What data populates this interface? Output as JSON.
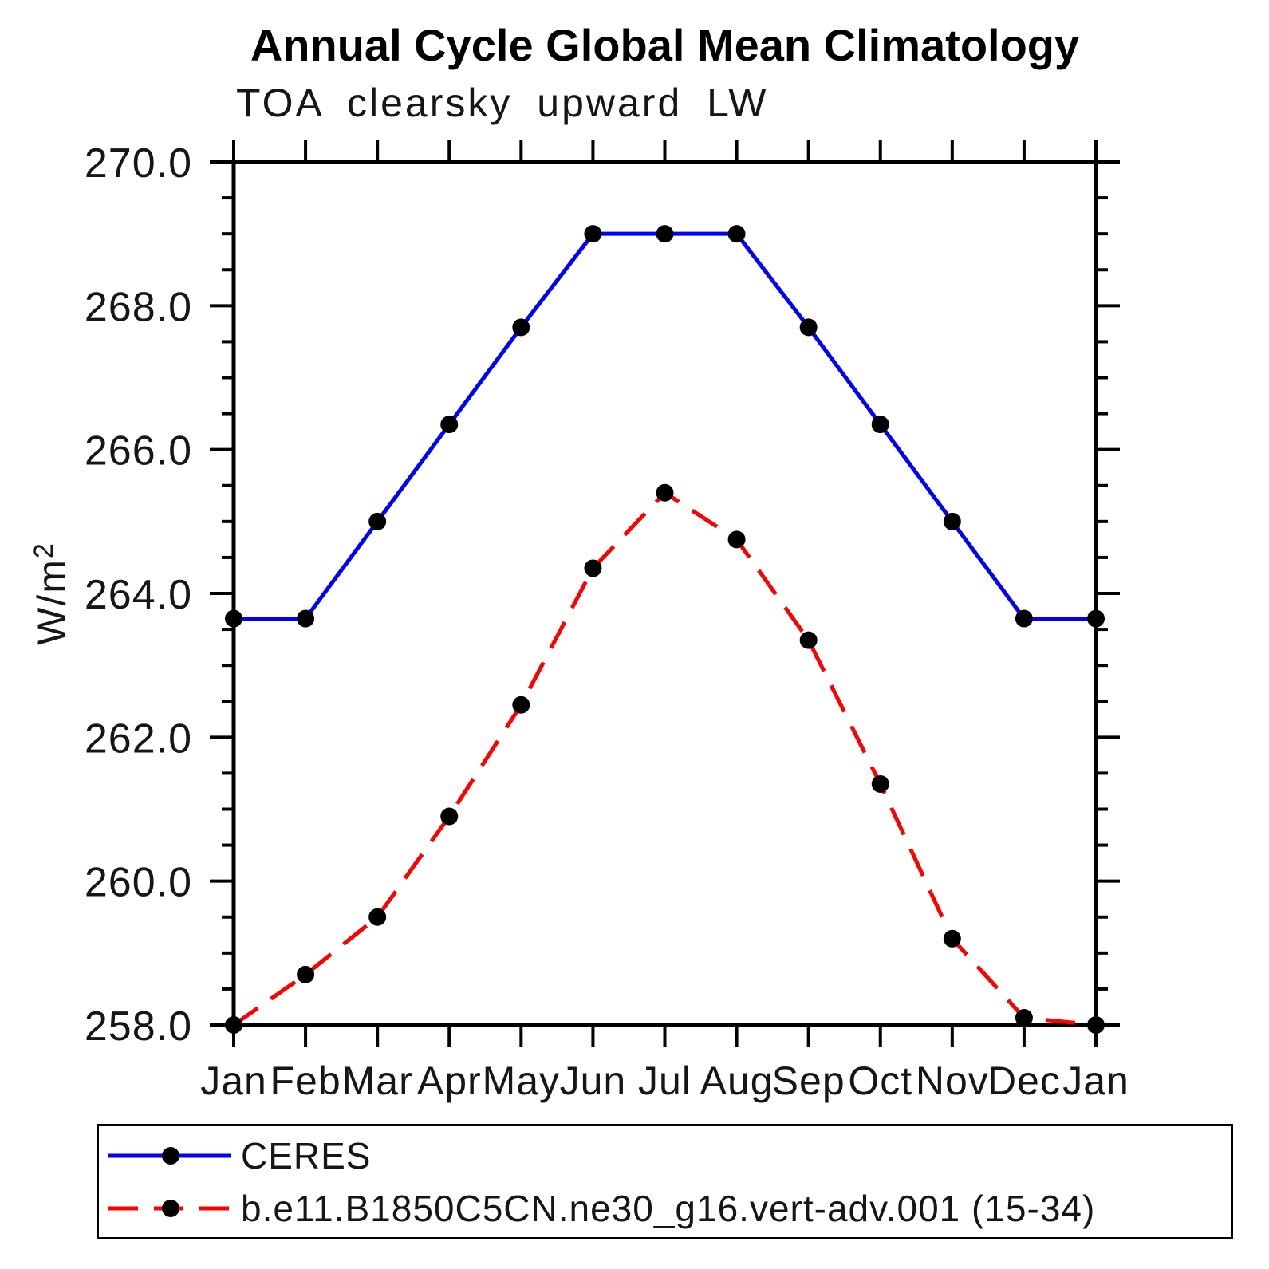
{
  "title": "Annual Cycle Global Mean Climatology",
  "subtitle": "TOA clearsky upward LW",
  "chart_data": {
    "type": "line",
    "title": "Annual Cycle Global Mean Climatology",
    "subtitle": "TOA clearsky upward LW",
    "xlabel": "",
    "ylabel": "W/m²",
    "categories": [
      "Jan",
      "Feb",
      "Mar",
      "Apr",
      "May",
      "Jun",
      "Jul",
      "Aug",
      "Sep",
      "Oct",
      "Nov",
      "Dec",
      "Jan"
    ],
    "ylim": [
      258.0,
      270.0
    ],
    "ytick_step": 2.0,
    "ytick_minor_step": 0.5,
    "ytick_labels": [
      "258.0",
      "260.0",
      "262.0",
      "264.0",
      "266.0",
      "268.0",
      "270.0"
    ],
    "grid": false,
    "legend_position": "bottom",
    "axis_color": "#000000",
    "marker_color": "#000000",
    "series": [
      {
        "name": "CERES",
        "color": "#0000ff",
        "style": "solid",
        "marker": "circle",
        "values": [
          263.65,
          263.65,
          265.0,
          266.35,
          267.7,
          269.0,
          269.0,
          269.0,
          267.7,
          266.35,
          265.0,
          263.65,
          263.65
        ]
      },
      {
        "name": "b.e11.B1850C5CN.ne30_g16.vert-adv.001 (15-34)",
        "color": "#ff0000",
        "style": "dashed",
        "marker": "circle",
        "values": [
          258.0,
          258.7,
          259.5,
          260.9,
          262.45,
          264.35,
          265.4,
          264.75,
          263.35,
          261.35,
          259.2,
          258.1,
          258.0
        ]
      }
    ]
  }
}
